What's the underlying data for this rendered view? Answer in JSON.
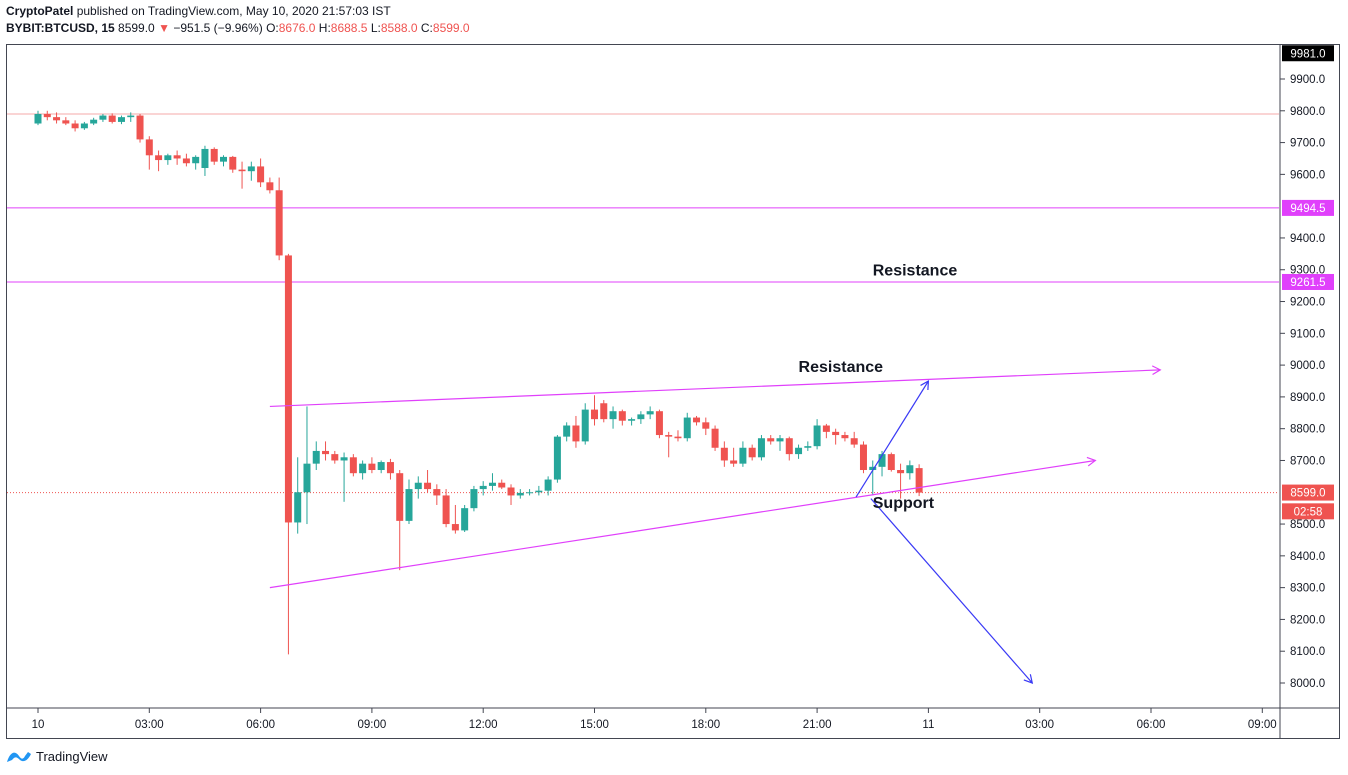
{
  "header": {
    "author": "CryptoPatel",
    "published_text": "published on TradingView.com, May 10, 2020 21:57:03 IST",
    "symbol": "BYBIT:BTCUSD, 15",
    "last": "8599.0",
    "change": "−951.5 (−9.96%)",
    "open_label": "O:",
    "open": "8676.0",
    "high_label": "H:",
    "high": "8688.5",
    "low_label": "L:",
    "low": "8588.0",
    "close_label": "C:",
    "close": "8599.0"
  },
  "footer": {
    "brand": "TradingView",
    "logo_icon": "tradingview-logo-icon"
  },
  "colors": {
    "up": "#26a69a",
    "down": "#ef5350",
    "level": "#e040fb",
    "arrow": "#3a3af5",
    "price_line": "#ef5350",
    "top_tag": "#000000"
  },
  "chart_data": {
    "type": "candlestick",
    "y_axis": {
      "min": 7925,
      "max": 10000,
      "ticks": [
        "9900.0",
        "9800.0",
        "9700.0",
        "9600.0",
        "9400.0",
        "9300.0",
        "9200.0",
        "9100.0",
        "9000.0",
        "8900.0",
        "8800.0",
        "8700.0",
        "8500.0",
        "8400.0",
        "8300.0",
        "8200.0",
        "8100.0",
        "8000.0"
      ]
    },
    "x_axis": {
      "ticks": [
        {
          "t": 0,
          "label": "10"
        },
        {
          "t": 3,
          "label": "03:00"
        },
        {
          "t": 6,
          "label": "06:00"
        },
        {
          "t": 9,
          "label": "09:00"
        },
        {
          "t": 12,
          "label": "12:00"
        },
        {
          "t": 15,
          "label": "15:00"
        },
        {
          "t": 18,
          "label": "18:00"
        },
        {
          "t": 21,
          "label": "21:00"
        },
        {
          "t": 24,
          "label": "11"
        },
        {
          "t": 27,
          "label": "03:00"
        },
        {
          "t": 30,
          "label": "06:00"
        },
        {
          "t": 33,
          "label": "09:00"
        }
      ]
    },
    "price_tags": [
      {
        "value": 9981.0,
        "label": "9981.0",
        "style": "top"
      },
      {
        "value": 9494.5,
        "label": "9494.5",
        "style": "level"
      },
      {
        "value": 9261.5,
        "label": "9261.5",
        "style": "level"
      },
      {
        "value": 8599.0,
        "label": "8599.0",
        "style": "last"
      },
      {
        "value": 8540.0,
        "label": "02:58",
        "style": "timer"
      }
    ],
    "horizontal_lines": [
      {
        "value": 9790,
        "color": "#f4a9a9",
        "dash": false
      },
      {
        "value": 9494.5,
        "color": "#e040fb",
        "dash": false
      },
      {
        "value": 9261.5,
        "color": "#e040fb",
        "dash": false
      },
      {
        "value": 8599.0,
        "color": "#ef5350",
        "dash": true
      }
    ],
    "trend_lines": [
      {
        "t1": 6.25,
        "v1": 8870,
        "t2": 30.25,
        "v2": 8985,
        "color": "#e040fb",
        "arrow": true
      },
      {
        "t1": 6.25,
        "v1": 8300,
        "t2": 28.5,
        "v2": 8700,
        "color": "#e040fb",
        "arrow": true
      },
      {
        "t1": 22.05,
        "v1": 8585,
        "t2": 24.0,
        "v2": 8950,
        "color": "#3a3af5",
        "arrow": true
      },
      {
        "t1": 22.45,
        "v1": 8580,
        "t2": 26.8,
        "v2": 8000,
        "color": "#3a3af5",
        "arrow": true
      }
    ],
    "annotations": [
      {
        "text": "Resistance",
        "t": 22.5,
        "v": 9282
      },
      {
        "text": "Resistance",
        "t": 20.5,
        "v": 8978
      },
      {
        "text": "Support",
        "t": 22.5,
        "v": 8550
      }
    ],
    "candles": [
      {
        "t": 0.0,
        "o": 9760,
        "h": 9800,
        "l": 9755,
        "c": 9790
      },
      {
        "t": 0.25,
        "o": 9790,
        "h": 9800,
        "l": 9770,
        "c": 9780
      },
      {
        "t": 0.5,
        "o": 9780,
        "h": 9795,
        "l": 9760,
        "c": 9770
      },
      {
        "t": 0.75,
        "o": 9770,
        "h": 9780,
        "l": 9755,
        "c": 9760
      },
      {
        "t": 1.0,
        "o": 9760,
        "h": 9770,
        "l": 9735,
        "c": 9745
      },
      {
        "t": 1.25,
        "o": 9745,
        "h": 9765,
        "l": 9740,
        "c": 9760
      },
      {
        "t": 1.5,
        "o": 9760,
        "h": 9778,
        "l": 9755,
        "c": 9772
      },
      {
        "t": 1.75,
        "o": 9772,
        "h": 9790,
        "l": 9765,
        "c": 9785
      },
      {
        "t": 2.0,
        "o": 9785,
        "h": 9792,
        "l": 9760,
        "c": 9765
      },
      {
        "t": 2.25,
        "o": 9765,
        "h": 9785,
        "l": 9758,
        "c": 9780
      },
      {
        "t": 2.5,
        "o": 9780,
        "h": 9795,
        "l": 9765,
        "c": 9785
      },
      {
        "t": 2.75,
        "o": 9785,
        "h": 9790,
        "l": 9700,
        "c": 9710
      },
      {
        "t": 3.0,
        "o": 9710,
        "h": 9720,
        "l": 9615,
        "c": 9660
      },
      {
        "t": 3.25,
        "o": 9660,
        "h": 9675,
        "l": 9610,
        "c": 9645
      },
      {
        "t": 3.5,
        "o": 9645,
        "h": 9665,
        "l": 9630,
        "c": 9660
      },
      {
        "t": 3.75,
        "o": 9660,
        "h": 9675,
        "l": 9630,
        "c": 9650
      },
      {
        "t": 4.0,
        "o": 9650,
        "h": 9665,
        "l": 9625,
        "c": 9635
      },
      {
        "t": 4.25,
        "o": 9635,
        "h": 9660,
        "l": 9615,
        "c": 9655
      },
      {
        "t": 4.5,
        "o": 9620,
        "h": 9690,
        "l": 9595,
        "c": 9680
      },
      {
        "t": 4.75,
        "o": 9680,
        "h": 9685,
        "l": 9630,
        "c": 9640
      },
      {
        "t": 5.0,
        "o": 9640,
        "h": 9660,
        "l": 9625,
        "c": 9655
      },
      {
        "t": 5.25,
        "o": 9655,
        "h": 9658,
        "l": 9605,
        "c": 9615
      },
      {
        "t": 5.5,
        "o": 9615,
        "h": 9640,
        "l": 9555,
        "c": 9610
      },
      {
        "t": 5.75,
        "o": 9610,
        "h": 9640,
        "l": 9580,
        "c": 9625
      },
      {
        "t": 6.0,
        "o": 9625,
        "h": 9650,
        "l": 9560,
        "c": 9575
      },
      {
        "t": 6.25,
        "o": 9575,
        "h": 9590,
        "l": 9540,
        "c": 9550
      },
      {
        "t": 6.5,
        "o": 9550,
        "h": 9590,
        "l": 9330,
        "c": 9345
      },
      {
        "t": 6.75,
        "o": 9345,
        "h": 9350,
        "l": 8090,
        "c": 8505
      },
      {
        "t": 7.0,
        "o": 8505,
        "h": 8710,
        "l": 8470,
        "c": 8600
      },
      {
        "t": 7.25,
        "o": 8600,
        "h": 8870,
        "l": 8500,
        "c": 8690
      },
      {
        "t": 7.5,
        "o": 8690,
        "h": 8760,
        "l": 8670,
        "c": 8730
      },
      {
        "t": 7.75,
        "o": 8730,
        "h": 8760,
        "l": 8700,
        "c": 8720
      },
      {
        "t": 8.0,
        "o": 8720,
        "h": 8730,
        "l": 8690,
        "c": 8700
      },
      {
        "t": 8.25,
        "o": 8700,
        "h": 8725,
        "l": 8570,
        "c": 8710
      },
      {
        "t": 8.5,
        "o": 8710,
        "h": 8720,
        "l": 8650,
        "c": 8660
      },
      {
        "t": 8.75,
        "o": 8660,
        "h": 8700,
        "l": 8640,
        "c": 8690
      },
      {
        "t": 9.0,
        "o": 8690,
        "h": 8710,
        "l": 8660,
        "c": 8670
      },
      {
        "t": 9.25,
        "o": 8670,
        "h": 8700,
        "l": 8660,
        "c": 8695
      },
      {
        "t": 9.5,
        "o": 8695,
        "h": 8705,
        "l": 8640,
        "c": 8660
      },
      {
        "t": 9.75,
        "o": 8660,
        "h": 8670,
        "l": 8355,
        "c": 8510
      },
      {
        "t": 10.0,
        "o": 8510,
        "h": 8640,
        "l": 8500,
        "c": 8610
      },
      {
        "t": 10.25,
        "o": 8610,
        "h": 8650,
        "l": 8580,
        "c": 8630
      },
      {
        "t": 10.5,
        "o": 8630,
        "h": 8670,
        "l": 8600,
        "c": 8610
      },
      {
        "t": 10.75,
        "o": 8610,
        "h": 8625,
        "l": 8560,
        "c": 8590
      },
      {
        "t": 11.0,
        "o": 8590,
        "h": 8610,
        "l": 8490,
        "c": 8500
      },
      {
        "t": 11.25,
        "o": 8500,
        "h": 8560,
        "l": 8470,
        "c": 8480
      },
      {
        "t": 11.5,
        "o": 8480,
        "h": 8560,
        "l": 8475,
        "c": 8550
      },
      {
        "t": 11.75,
        "o": 8550,
        "h": 8620,
        "l": 8540,
        "c": 8610
      },
      {
        "t": 12.0,
        "o": 8610,
        "h": 8635,
        "l": 8590,
        "c": 8620
      },
      {
        "t": 12.25,
        "o": 8620,
        "h": 8660,
        "l": 8605,
        "c": 8630
      },
      {
        "t": 12.5,
        "o": 8630,
        "h": 8640,
        "l": 8610,
        "c": 8615
      },
      {
        "t": 12.75,
        "o": 8615,
        "h": 8625,
        "l": 8560,
        "c": 8590
      },
      {
        "t": 13.0,
        "o": 8590,
        "h": 8610,
        "l": 8580,
        "c": 8598
      },
      {
        "t": 13.25,
        "o": 8598,
        "h": 8610,
        "l": 8590,
        "c": 8600
      },
      {
        "t": 13.5,
        "o": 8600,
        "h": 8620,
        "l": 8590,
        "c": 8605
      },
      {
        "t": 13.75,
        "o": 8605,
        "h": 8650,
        "l": 8590,
        "c": 8640
      },
      {
        "t": 14.0,
        "o": 8640,
        "h": 8780,
        "l": 8630,
        "c": 8775
      },
      {
        "t": 14.25,
        "o": 8775,
        "h": 8820,
        "l": 8760,
        "c": 8810
      },
      {
        "t": 14.5,
        "o": 8810,
        "h": 8840,
        "l": 8740,
        "c": 8760
      },
      {
        "t": 14.75,
        "o": 8760,
        "h": 8880,
        "l": 8750,
        "c": 8860
      },
      {
        "t": 15.0,
        "o": 8860,
        "h": 8905,
        "l": 8810,
        "c": 8830
      },
      {
        "t": 15.25,
        "o": 8880,
        "h": 8890,
        "l": 8820,
        "c": 8830
      },
      {
        "t": 15.5,
        "o": 8830,
        "h": 8870,
        "l": 8800,
        "c": 8855
      },
      {
        "t": 15.75,
        "o": 8855,
        "h": 8860,
        "l": 8810,
        "c": 8825
      },
      {
        "t": 16.0,
        "o": 8825,
        "h": 8835,
        "l": 8810,
        "c": 8830
      },
      {
        "t": 16.25,
        "o": 8830,
        "h": 8855,
        "l": 8815,
        "c": 8845
      },
      {
        "t": 16.5,
        "o": 8845,
        "h": 8870,
        "l": 8830,
        "c": 8855
      },
      {
        "t": 16.75,
        "o": 8855,
        "h": 8860,
        "l": 8770,
        "c": 8780
      },
      {
        "t": 17.0,
        "o": 8780,
        "h": 8790,
        "l": 8710,
        "c": 8775
      },
      {
        "t": 17.25,
        "o": 8775,
        "h": 8795,
        "l": 8760,
        "c": 8770
      },
      {
        "t": 17.5,
        "o": 8770,
        "h": 8850,
        "l": 8760,
        "c": 8835
      },
      {
        "t": 17.75,
        "o": 8835,
        "h": 8840,
        "l": 8810,
        "c": 8820
      },
      {
        "t": 18.0,
        "o": 8820,
        "h": 8835,
        "l": 8780,
        "c": 8800
      },
      {
        "t": 18.25,
        "o": 8800,
        "h": 8810,
        "l": 8730,
        "c": 8740
      },
      {
        "t": 18.5,
        "o": 8740,
        "h": 8760,
        "l": 8680,
        "c": 8700
      },
      {
        "t": 18.75,
        "o": 8700,
        "h": 8740,
        "l": 8680,
        "c": 8690
      },
      {
        "t": 19.0,
        "o": 8690,
        "h": 8760,
        "l": 8680,
        "c": 8740
      },
      {
        "t": 19.25,
        "o": 8740,
        "h": 8750,
        "l": 8700,
        "c": 8710
      },
      {
        "t": 19.5,
        "o": 8710,
        "h": 8780,
        "l": 8700,
        "c": 8770
      },
      {
        "t": 19.75,
        "o": 8770,
        "h": 8780,
        "l": 8750,
        "c": 8760
      },
      {
        "t": 20.0,
        "o": 8760,
        "h": 8780,
        "l": 8730,
        "c": 8770
      },
      {
        "t": 20.25,
        "o": 8770,
        "h": 8775,
        "l": 8700,
        "c": 8720
      },
      {
        "t": 20.5,
        "o": 8720,
        "h": 8750,
        "l": 8705,
        "c": 8740
      },
      {
        "t": 20.75,
        "o": 8740,
        "h": 8760,
        "l": 8730,
        "c": 8745
      },
      {
        "t": 21.0,
        "o": 8745,
        "h": 8830,
        "l": 8735,
        "c": 8810
      },
      {
        "t": 21.25,
        "o": 8810,
        "h": 8815,
        "l": 8770,
        "c": 8790
      },
      {
        "t": 21.5,
        "o": 8790,
        "h": 8800,
        "l": 8750,
        "c": 8780
      },
      {
        "t": 21.75,
        "o": 8780,
        "h": 8790,
        "l": 8760,
        "c": 8770
      },
      {
        "t": 22.0,
        "o": 8770,
        "h": 8790,
        "l": 8740,
        "c": 8750
      },
      {
        "t": 22.25,
        "o": 8750,
        "h": 8760,
        "l": 8660,
        "c": 8670
      },
      {
        "t": 22.5,
        "o": 8670,
        "h": 8700,
        "l": 8590,
        "c": 8680
      },
      {
        "t": 22.75,
        "o": 8680,
        "h": 8730,
        "l": 8650,
        "c": 8720
      },
      {
        "t": 23.0,
        "o": 8720,
        "h": 8725,
        "l": 8665,
        "c": 8670
      },
      {
        "t": 23.25,
        "o": 8670,
        "h": 8690,
        "l": 8580,
        "c": 8660
      },
      {
        "t": 23.5,
        "o": 8660,
        "h": 8700,
        "l": 8640,
        "c": 8685
      },
      {
        "t": 23.75,
        "o": 8676,
        "h": 8688,
        "l": 8588,
        "c": 8599
      }
    ]
  }
}
